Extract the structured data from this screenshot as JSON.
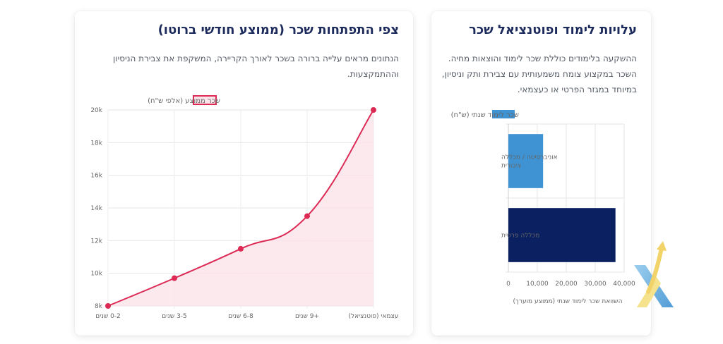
{
  "salary_card": {
    "title": "צפי התפתחות שכר (ממוצע חודשי ברוטו)",
    "description": "הנתונים מראים עלייה ברורה בשכר לאורך הקריירה, המשקפת את צבירת הניסיון וההתמקצעות."
  },
  "cost_card": {
    "title": "עלויות לימוד ופוטנציאל שכר",
    "description": "ההשקעה בלימודים כוללת שכר לימוד והוצאות מחיה. השכר במקצוע צומח משמעותית עם צבירת ותק וניסיון, במיוחד במגזר הפרטי או כעצמאי."
  },
  "colors": {
    "line": "#dc2a55",
    "area": "#fbe3e9",
    "bar_public": "#3f93d2",
    "bar_private": "#0b2060",
    "title": "#1c2a5c"
  },
  "chart_data": [
    {
      "type": "area",
      "legend": "שכר ממוצע (אלפי ש\"ח)",
      "legend_position": "top",
      "categories": [
        "0-2 שנים",
        "3-5 שנים",
        "6-8 שנים",
        "+9 שנים",
        "עצמאי (פוטנציאל)"
      ],
      "values": [
        8000,
        9700,
        11500,
        13500,
        20000
      ],
      "ylim": [
        8000,
        20000
      ],
      "yticks": [
        "8k",
        "10k",
        "12k",
        "14k",
        "16k",
        "18k",
        "20k"
      ],
      "grid": true
    },
    {
      "type": "bar",
      "orientation": "horizontal",
      "legend": "שכר לימוד שנתי (ש\"ח)",
      "legend_position": "top",
      "categories": [
        "אוניברסיטה / מכללה ציבורית",
        "מכללה פרטית"
      ],
      "values": [
        12000,
        37000
      ],
      "xlim": [
        0,
        40000
      ],
      "xticks": [
        "0",
        "10,000",
        "20,000",
        "30,000",
        "40,000"
      ],
      "xlabel": "השוואת שכר לימוד שנתי (ממוצע מוערך)",
      "grid": true
    }
  ]
}
